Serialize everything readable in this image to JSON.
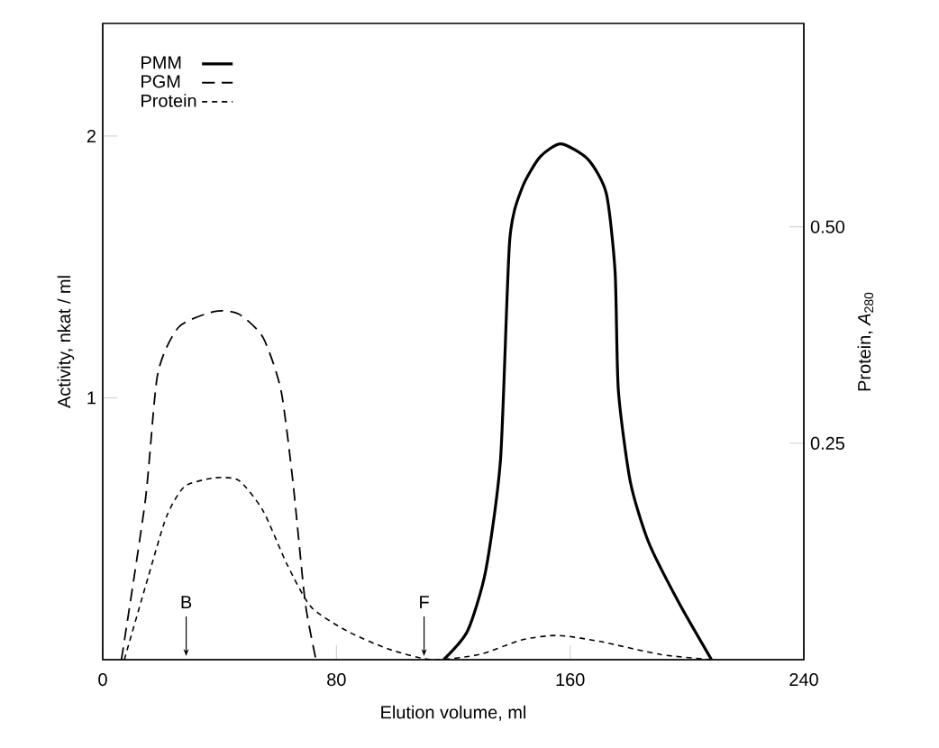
{
  "chart_data": {
    "type": "line",
    "xlabel": "Elution volume,   ml",
    "ylabel": "Activity,   nkat / ml",
    "y2label": "Protein,   *A*$_{280}$",
    "xlim": [
      0,
      240
    ],
    "xticks": [
      0,
      80,
      160,
      240
    ],
    "ylim": [
      0,
      2.43
    ],
    "yticks": [
      1,
      2
    ],
    "y2lim": [
      0,
      0.735
    ],
    "y2ticks": [
      {
        "value": 0.25,
        "label": "0.25"
      },
      {
        "value": 0.5,
        "label": "0.50"
      }
    ],
    "legend": "top left",
    "grid": false,
    "series": [
      {
        "name": "PMM",
        "color": "#000000",
        "line_style": "solid",
        "x": [
          116.7,
          124.9,
          131.1,
          136.2,
          139.3,
          143.5,
          149.7,
          156.9,
          166.2,
          172.4,
          175.4,
          176.5,
          180.6,
          186.8,
          197.1,
          208.4
        ],
        "values": [
          0,
          0.11,
          0.34,
          0.77,
          1.6,
          1.8,
          1.92,
          1.97,
          1.91,
          1.78,
          1.48,
          1.03,
          0.68,
          0.45,
          0.22,
          0
        ]
      },
      {
        "name": "PGM",
        "color": "#000000",
        "line_style": "dashed",
        "x": [
          6.4,
          14.6,
          18.8,
          26,
          38.3,
          46.6,
          54.9,
          61,
          65.1,
          69.3,
          73
        ],
        "values": [
          0,
          0.61,
          1.09,
          1.27,
          1.33,
          1.32,
          1.23,
          1.03,
          0.68,
          0.22,
          0
        ]
      },
      {
        "name": "Protein",
        "color": "#000000",
        "line_style": "dashed",
        "axis": "y2",
        "x": [
          7.4,
          15.6,
          21.8,
          28,
          38.3,
          46.6,
          54.9,
          63.1,
          71.3,
          83.7,
          98.1,
          112.6,
          129,
          143.5,
          155.8,
          170.3,
          190.9,
          208.4
        ],
        "values": [
          0,
          0.096,
          0.165,
          0.2,
          0.21,
          0.207,
          0.172,
          0.11,
          0.061,
          0.033,
          0.012,
          0,
          0.006,
          0.023,
          0.028,
          0.021,
          0.006,
          0
        ]
      }
    ],
    "annotations": [
      "B",
      {
        "text": "F",
        "x": 110,
        "y": 0
      }
    ]
  }
}
